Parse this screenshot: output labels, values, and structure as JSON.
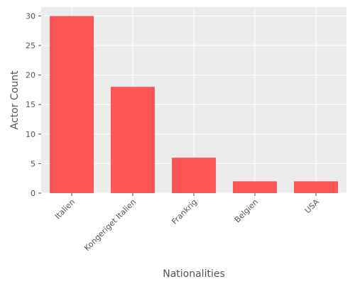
{
  "chart_data": {
    "type": "bar",
    "categories": [
      "Italien",
      "Kongeriget Italien",
      "Frankrig",
      "Belgien",
      "USA"
    ],
    "values": [
      30,
      18,
      6,
      2,
      2
    ],
    "title": "",
    "xlabel": "Nationalities",
    "ylabel": "Actor Count",
    "ylim": [
      0,
      31.5
    ],
    "yticks": [
      0,
      5,
      10,
      15,
      20,
      25,
      30
    ],
    "grid": true,
    "legend": "none",
    "bar_color": "#ff5555",
    "plot_background": "#ebebeb",
    "grid_color": "#ffffff"
  }
}
